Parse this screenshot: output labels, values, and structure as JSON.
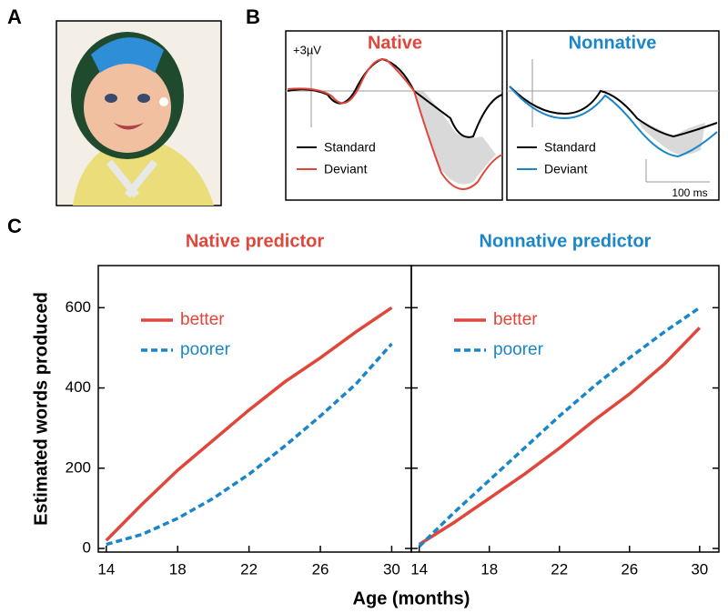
{
  "panels": {
    "a": "A",
    "b": "B",
    "c": "C"
  },
  "erp": [
    {
      "title": "Native",
      "title_color": "#e0463a",
      "scale_label": "+3µV",
      "legend": [
        "Standard",
        "Deviant"
      ]
    },
    {
      "title": "Nonnative",
      "title_color": "#1a86c8",
      "legend": [
        "Standard",
        "Deviant"
      ],
      "time_label": "100 ms"
    }
  ],
  "chart_data": [
    {
      "type": "line",
      "title": "Native predictor",
      "title_color": "#e0463a",
      "y_label": "Estimated words produced",
      "x_label": "Age (months)",
      "x": [
        14,
        16,
        18,
        20,
        22,
        24,
        26,
        28,
        30
      ],
      "series": [
        {
          "name": "better",
          "color": "#e0463a",
          "style": "solid",
          "values": [
            20,
            110,
            195,
            270,
            345,
            415,
            475,
            540,
            600
          ]
        },
        {
          "name": "poorer",
          "color": "#1a86c8",
          "style": "dashed",
          "values": [
            10,
            35,
            75,
            125,
            185,
            255,
            330,
            410,
            510
          ]
        }
      ],
      "xlim": [
        13.55,
        31.1
      ],
      "ylim": [
        -9,
        705
      ],
      "xticks": [
        14,
        18,
        22,
        26,
        30
      ],
      "yticks": [
        0,
        200,
        400,
        600
      ]
    },
    {
      "type": "line",
      "title": "Nonnative predictor",
      "title_color": "#1a86c8",
      "x": [
        14,
        16,
        18,
        20,
        22,
        24,
        26,
        28,
        30
      ],
      "series": [
        {
          "name": "better",
          "color": "#e0463a",
          "style": "solid",
          "values": [
            10,
            65,
            125,
            185,
            250,
            320,
            385,
            460,
            550
          ]
        },
        {
          "name": "poorer",
          "color": "#1a86c8",
          "style": "dashed",
          "values": [
            5,
            90,
            170,
            250,
            330,
            405,
            475,
            540,
            600
          ]
        }
      ],
      "xlim": [
        13.55,
        31.1
      ],
      "ylim": [
        -9,
        705
      ],
      "xticks": [
        14,
        18,
        22,
        26,
        30
      ],
      "yticks": [
        0,
        200,
        400,
        600
      ]
    }
  ]
}
